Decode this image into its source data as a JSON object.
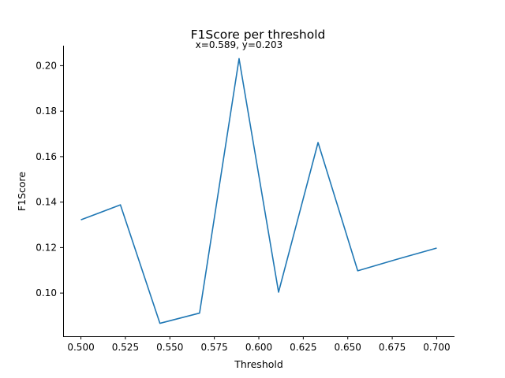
{
  "chart_data": {
    "type": "line",
    "title": "F1Score per threshold",
    "annotation": "x=0.589, y=0.203",
    "xlabel": "Threshold",
    "ylabel": "F1Score",
    "x": [
      0.5,
      0.5222,
      0.5444,
      0.5667,
      0.5889,
      0.6111,
      0.6333,
      0.6556,
      0.6778,
      0.7
    ],
    "series": [
      {
        "values": [
          0.1322,
          0.1388,
          0.0867,
          0.0912,
          0.2031,
          0.1004,
          0.1662,
          0.1098,
          0.1149,
          0.1198
        ],
        "color": "#1f77b4"
      }
    ],
    "xlim": [
      0.49,
      0.71
    ],
    "ylim": [
      0.081,
      0.2088
    ],
    "xticks": [
      0.5,
      0.525,
      0.55,
      0.575,
      0.6,
      0.625,
      0.65,
      0.675,
      0.7
    ],
    "xtick_labels": [
      "0.500",
      "0.525",
      "0.550",
      "0.575",
      "0.600",
      "0.625",
      "0.650",
      "0.675",
      "0.700"
    ],
    "yticks": [
      0.1,
      0.12,
      0.14,
      0.16,
      0.18,
      0.2
    ],
    "ytick_labels": [
      "0.10",
      "0.12",
      "0.14",
      "0.16",
      "0.18",
      "0.20"
    ],
    "grid": false,
    "spines": [
      "left",
      "bottom"
    ]
  }
}
